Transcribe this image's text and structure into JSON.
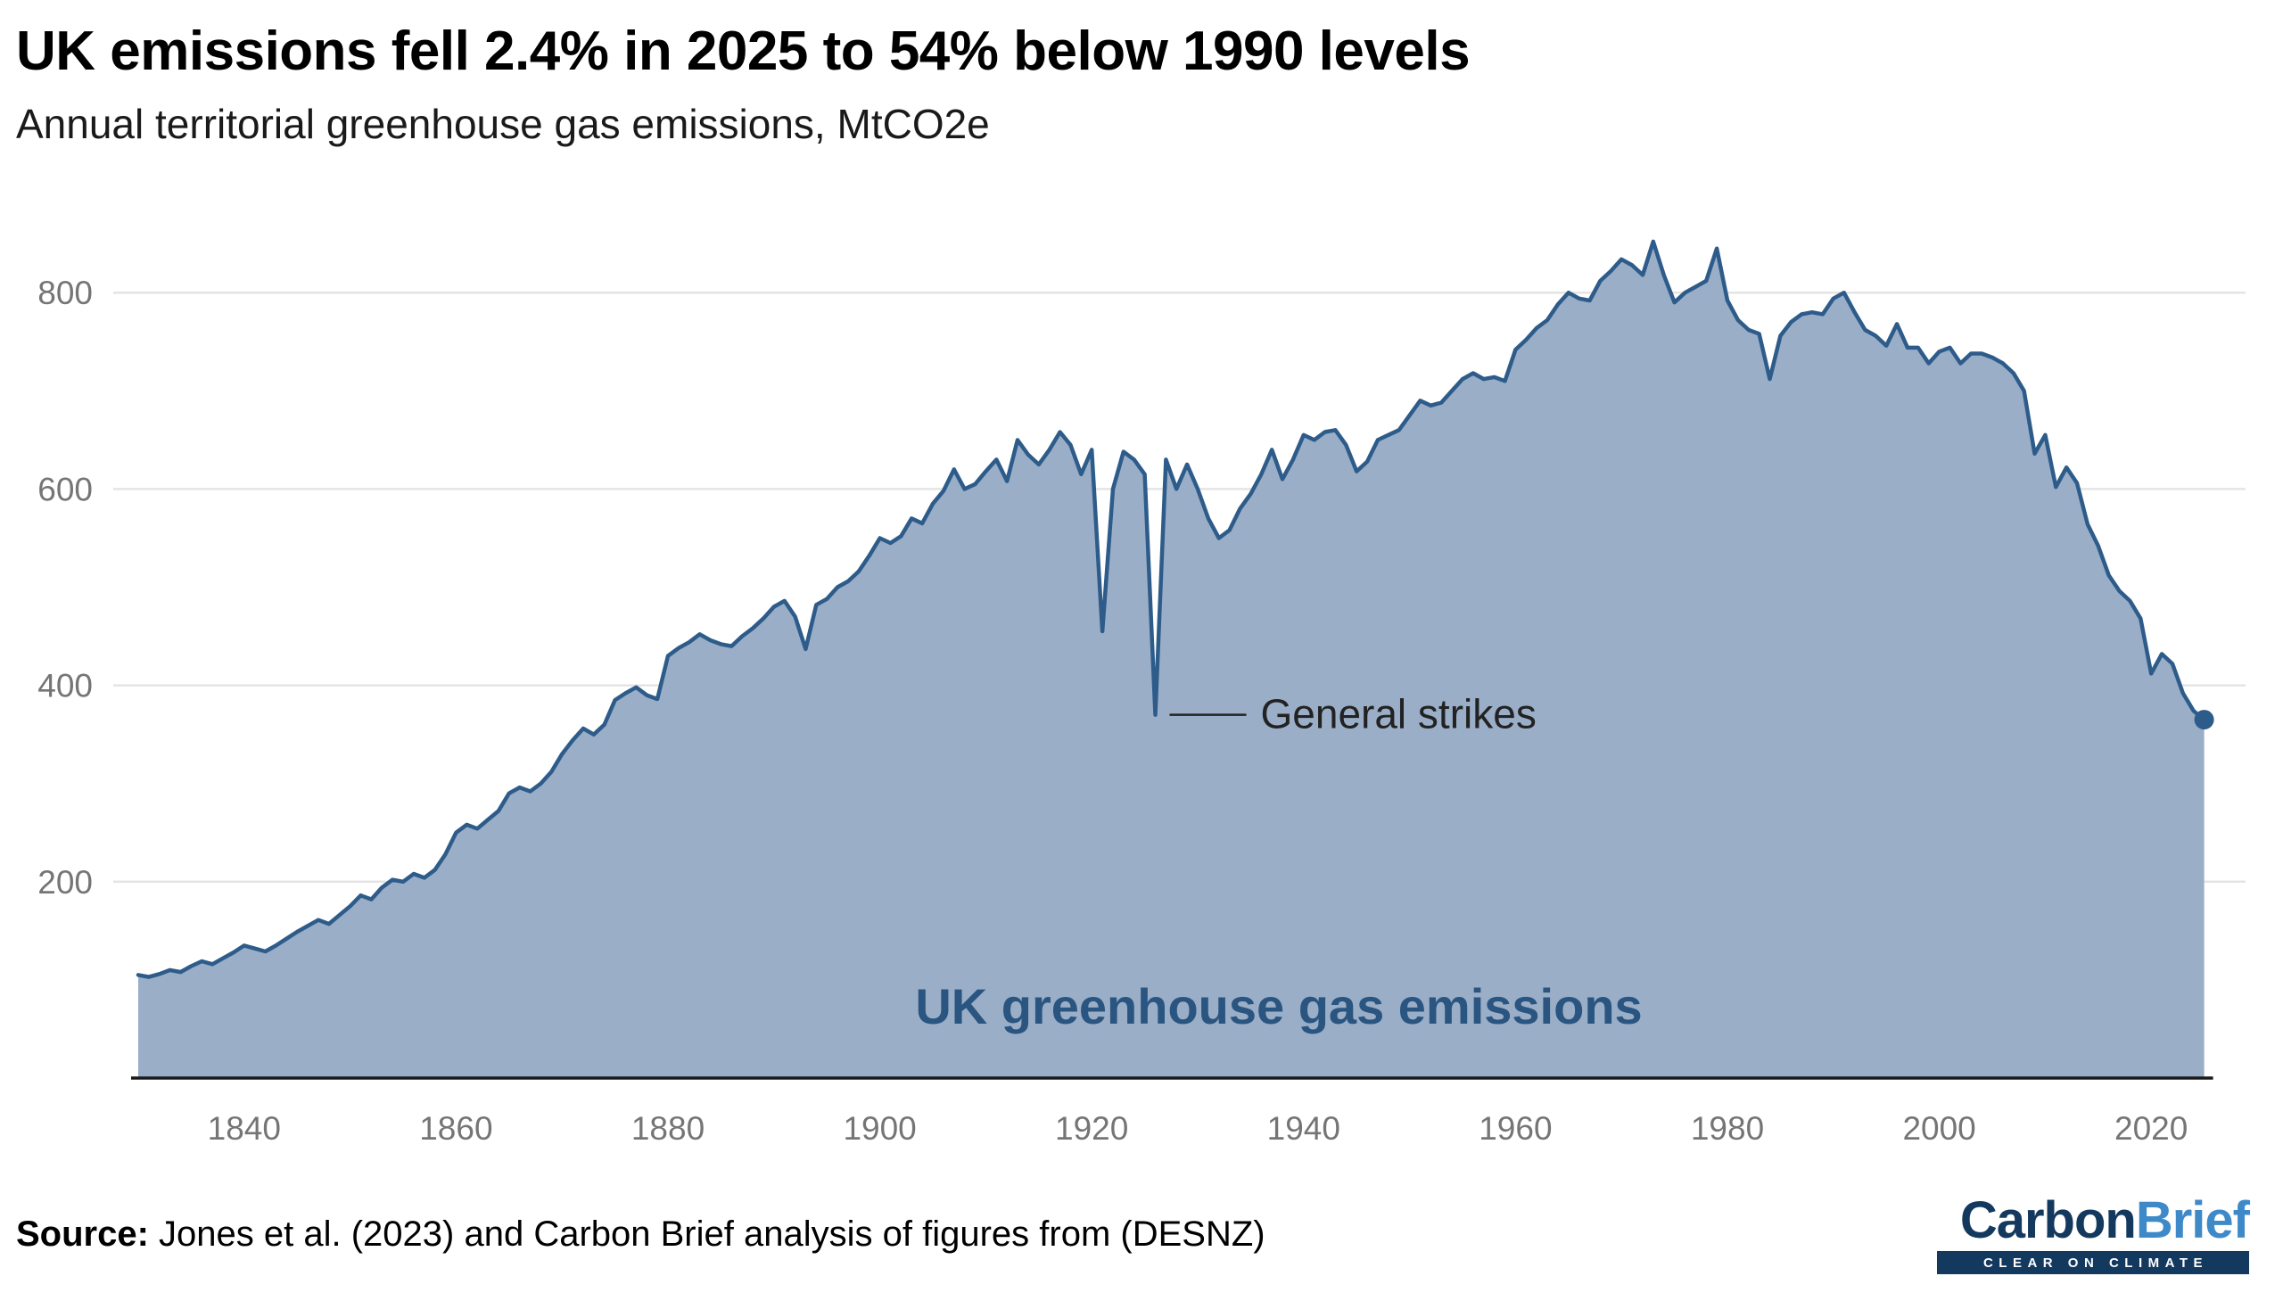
{
  "header": {
    "title": "UK emissions fell 2.4% in 2025 to 54% below 1990 levels",
    "subtitle": "Annual territorial greenhouse gas emissions, MtCO2e"
  },
  "footer": {
    "source_label": "Source:",
    "source_text": " Jones et al. (2023) and Carbon Brief analysis of figures from (DESNZ)",
    "logo": {
      "part1": "Carbon",
      "part2": "Brief",
      "tagline": "CLEAR ON CLIMATE"
    }
  },
  "chart_data": {
    "type": "area",
    "title": "UK emissions fell 2.4% in 2025 to 54% below 1990 levels",
    "subtitle": "Annual territorial greenhouse gas emissions, MtCO2e",
    "ylabel": "MtCO2e",
    "xlabel": "",
    "x_start_year": 1830,
    "x_end_year": 2025,
    "xlim": [
      1830,
      2027
    ],
    "ylim": [
      0,
      880
    ],
    "grid": "horizontal",
    "yticks": [
      200,
      400,
      600,
      800
    ],
    "xticks": [
      1840,
      1860,
      1880,
      1900,
      1920,
      1940,
      1960,
      1980,
      2000,
      2020
    ],
    "series_label": "UK greenhouse gas emissions",
    "annotation": {
      "text": "General strikes",
      "year": 1926,
      "value": 370
    },
    "end_point": {
      "year": 2025,
      "value": 365
    },
    "values": [
      105,
      103,
      106,
      110,
      108,
      114,
      119,
      116,
      122,
      128,
      135,
      132,
      129,
      135,
      142,
      149,
      155,
      161,
      157,
      166,
      175,
      186,
      182,
      194,
      202,
      200,
      208,
      204,
      212,
      228,
      250,
      258,
      254,
      263,
      272,
      290,
      296,
      292,
      300,
      312,
      330,
      344,
      356,
      350,
      360,
      385,
      392,
      398,
      390,
      386,
      430,
      438,
      444,
      452,
      446,
      442,
      440,
      450,
      458,
      468,
      480,
      486,
      470,
      437,
      482,
      488,
      500,
      506,
      516,
      532,
      550,
      545,
      552,
      570,
      565,
      585,
      598,
      620,
      600,
      605,
      618,
      630,
      608,
      650,
      635,
      625,
      640,
      658,
      645,
      615,
      640,
      455,
      600,
      638,
      630,
      615,
      370,
      630,
      600,
      625,
      600,
      570,
      550,
      558,
      580,
      595,
      615,
      640,
      610,
      630,
      655,
      650,
      658,
      660,
      645,
      618,
      628,
      650,
      655,
      660,
      675,
      690,
      685,
      688,
      700,
      712,
      718,
      712,
      714,
      710,
      742,
      752,
      764,
      772,
      788,
      800,
      794,
      792,
      812,
      822,
      834,
      828,
      818,
      852,
      818,
      790,
      800,
      806,
      812,
      845,
      792,
      772,
      762,
      758,
      712,
      756,
      770,
      778,
      780,
      778,
      794,
      800,
      780,
      762,
      756,
      746,
      768,
      744,
      744,
      728,
      740,
      744,
      728,
      738,
      738,
      734,
      728,
      718,
      700,
      636,
      655,
      602,
      622,
      606,
      564,
      542,
      512,
      496,
      486,
      468,
      412,
      432,
      422,
      392,
      374,
      365
    ],
    "colors": {
      "area_fill": "#9aaec7",
      "line": "#2e5c8a",
      "label": "#2a5580",
      "grid": "#e4e4e4",
      "tick": "#757575",
      "axis": "#1a1a1a",
      "annotation": "#222222"
    }
  }
}
